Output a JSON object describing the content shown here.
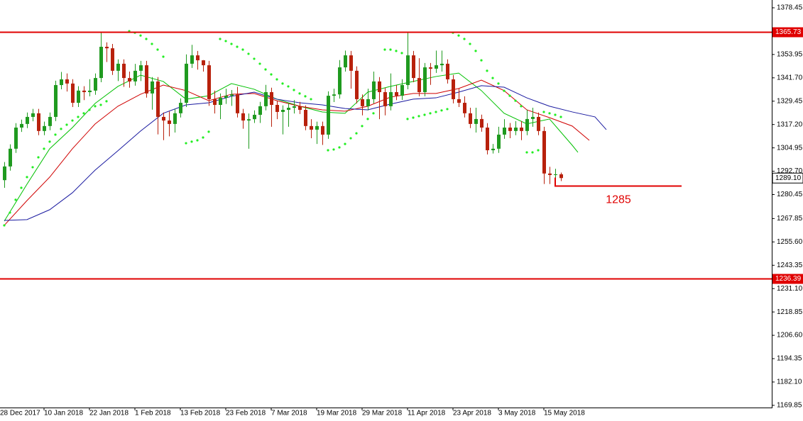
{
  "chart_data": {
    "type": "candlestick",
    "up_color": "#1f9a1f",
    "down_color": "#b8210c",
    "xlim": [
      -0.75,
      135
    ],
    "ylim": [
      1168.7,
      1382.54
    ],
    "xticks": [
      {
        "value": -1,
        "label": "28 Dec 2017"
      },
      {
        "value": 7,
        "label": "10 Jan 2018"
      },
      {
        "value": 15,
        "label": "22 Jan 2018"
      },
      {
        "value": 23,
        "label": "1 Feb 2018"
      },
      {
        "value": 31,
        "label": "13 Feb 2018"
      },
      {
        "value": 39,
        "label": "23 Feb 2018"
      },
      {
        "value": 47,
        "label": "7 Mar 2018"
      },
      {
        "value": 55,
        "label": "19 Mar 2018"
      },
      {
        "value": 63,
        "label": "29 Mar 2018"
      },
      {
        "value": 71,
        "label": "11 Apr 2018"
      },
      {
        "value": 79,
        "label": "23 Apr 2018"
      },
      {
        "value": 87,
        "label": "3 May 2018"
      },
      {
        "value": 95,
        "label": "15 May 2018"
      }
    ],
    "yticks": [
      1378.45,
      1353.95,
      {
        "value": 1341.7,
        "label": "1341.70"
      },
      1329.45,
      {
        "value": 1317.2,
        "label": "1317.20"
      },
      1304.95,
      {
        "value": 1292.7,
        "label": "1292.70"
      },
      1280.45,
      1267.85,
      {
        "value": 1255.6,
        "label": "1255.60"
      },
      1243.35,
      {
        "value": 1231.1,
        "label": "1231.10"
      },
      1218.85,
      {
        "value": 1206.6,
        "label": "1206.60"
      },
      1194.35,
      {
        "value": 1182.1,
        "label": "1182.10"
      },
      1169.85
    ],
    "x": [
      0,
      1,
      2,
      3,
      4,
      5,
      6,
      7,
      8,
      9,
      10,
      11,
      12,
      13,
      14,
      15,
      16,
      17,
      18,
      19,
      20,
      21,
      22,
      23,
      24,
      25,
      26,
      27,
      28,
      29,
      30,
      31,
      32,
      33,
      34,
      35,
      36,
      37,
      38,
      39,
      40,
      41,
      42,
      43,
      44,
      45,
      46,
      47,
      48,
      49,
      50,
      51,
      52,
      53,
      54,
      55,
      56,
      57,
      58,
      59,
      60,
      61,
      62,
      63,
      64,
      65,
      66,
      67,
      68,
      69,
      70,
      71,
      72,
      73,
      74,
      75,
      76,
      77,
      78,
      79,
      80,
      81,
      82,
      83,
      84,
      85,
      86,
      87,
      88,
      89,
      90,
      91,
      92,
      93,
      94,
      95,
      96,
      97,
      98
    ],
    "open": [
      1288.0,
      1295.2,
      1304.5,
      1315.6,
      1317.5,
      1321.2,
      1323.1,
      1313.8,
      1316.4,
      1321.2,
      1337.9,
      1340.9,
      1338.7,
      1328.6,
      1335.0,
      1334.2,
      1335.0,
      1341.6,
      1358.0,
      1357.2,
      1345.4,
      1349.1,
      1341.6,
      1339.8,
      1345.4,
      1348.3,
      1333.5,
      1339.8,
      1321.2,
      1319.3,
      1317.5,
      1323.1,
      1328.6,
      1349.1,
      1353.5,
      1350.9,
      1348.3,
      1330.5,
      1327.5,
      1331.2,
      1332.3,
      1333.0,
      1323.1,
      1319.3,
      1320.0,
      1322.3,
      1326.8,
      1334.2,
      1327.5,
      1323.8,
      1324.9,
      1326.0,
      1326.8,
      1324.9,
      1316.4,
      1314.5,
      1316.4,
      1311.9,
      1332.3,
      1333.0,
      1347.2,
      1353.5,
      1345.4,
      1330.5,
      1326.8,
      1330.5,
      1339.8,
      1334.2,
      1326.8,
      1334.2,
      1332.3,
      1337.9,
      1353.5,
      1341.6,
      1334.2,
      1347.2,
      1346.5,
      1348.3,
      1349.1,
      1340.9,
      1330.5,
      1328.6,
      1323.1,
      1317.5,
      1320.1,
      1315.6,
      1303.7,
      1304.5,
      1311.9,
      1315.6,
      1313.8,
      1315.6,
      1313.8,
      1320.1,
      1321.2,
      1313.8,
      1291.5,
      1290.7,
      1291.1
    ],
    "high": [
      1297.5,
      1306.8,
      1317.9,
      1319.8,
      1323.5,
      1325.4,
      1325.4,
      1318.7,
      1323.5,
      1340.2,
      1344.8,
      1344.0,
      1341.0,
      1337.3,
      1337.3,
      1341.0,
      1344.0,
      1365.5,
      1360.3,
      1359.5,
      1351.4,
      1351.4,
      1345.0,
      1349.0,
      1350.6,
      1350.6,
      1342.1,
      1342.1,
      1323.5,
      1324.0,
      1325.4,
      1330.9,
      1354.0,
      1359.0,
      1355.8,
      1351.0,
      1350.6,
      1335.0,
      1333.5,
      1336.0,
      1335.3,
      1337.0,
      1325.4,
      1323.0,
      1324.6,
      1329.1,
      1338.0,
      1336.5,
      1329.8,
      1327.2,
      1328.3,
      1330.0,
      1329.1,
      1327.2,
      1320.0,
      1318.7,
      1318.7,
      1334.6,
      1336.0,
      1351.0,
      1356.0,
      1355.8,
      1347.7,
      1333.0,
      1336.0,
      1345.0,
      1342.1,
      1336.5,
      1344.0,
      1338.0,
      1341.0,
      1365.5,
      1355.8,
      1352.0,
      1349.5,
      1349.5,
      1356.0,
      1356.0,
      1351.4,
      1343.2,
      1336.0,
      1332.0,
      1326.0,
      1326.0,
      1322.4,
      1317.9,
      1307.0,
      1316.0,
      1320.0,
      1318.0,
      1319.0,
      1319.0,
      1325.0,
      1326.0,
      1323.5,
      1316.0,
      1295.0,
      1294.0,
      1292.0
    ],
    "low": [
      1284.0,
      1293.0,
      1302.3,
      1313.3,
      1315.3,
      1318.9,
      1311.6,
      1311.6,
      1314.2,
      1319.0,
      1335.7,
      1334.5,
      1326.4,
      1326.4,
      1330.0,
      1332.0,
      1332.8,
      1339.4,
      1350.0,
      1343.2,
      1340.0,
      1337.0,
      1336.5,
      1337.6,
      1340.0,
      1331.3,
      1325.0,
      1312.0,
      1309.0,
      1311.0,
      1313.0,
      1320.9,
      1326.4,
      1346.9,
      1346.0,
      1345.0,
      1327.0,
      1323.0,
      1320.0,
      1328.0,
      1327.0,
      1320.9,
      1315.0,
      1304.5,
      1318.0,
      1318.0,
      1324.6,
      1316.0,
      1320.0,
      1312.0,
      1316.0,
      1323.0,
      1322.7,
      1314.2,
      1310.0,
      1307.0,
      1306.5,
      1309.7,
      1329.0,
      1330.8,
      1345.0,
      1336.0,
      1328.3,
      1322.0,
      1324.6,
      1328.3,
      1320.0,
      1322.0,
      1324.6,
      1330.0,
      1330.1,
      1335.7,
      1339.4,
      1332.0,
      1332.0,
      1338.0,
      1344.3,
      1345.0,
      1338.7,
      1328.3,
      1326.4,
      1320.9,
      1315.3,
      1313.0,
      1313.4,
      1301.5,
      1302.0,
      1302.3,
      1309.7,
      1310.0,
      1311.6,
      1309.0,
      1311.6,
      1316.0,
      1311.6,
      1286.0,
      1286.0,
      1286.5,
      1287.5
    ],
    "close": [
      1295.2,
      1304.5,
      1315.6,
      1317.5,
      1321.2,
      1323.1,
      1313.8,
      1316.4,
      1321.2,
      1337.9,
      1340.9,
      1338.7,
      1328.6,
      1335.0,
      1334.2,
      1335.0,
      1341.6,
      1358.0,
      1357.2,
      1345.4,
      1349.1,
      1341.6,
      1339.8,
      1345.4,
      1348.3,
      1333.5,
      1339.8,
      1321.2,
      1319.3,
      1317.5,
      1323.1,
      1328.6,
      1349.1,
      1353.5,
      1350.9,
      1348.3,
      1330.5,
      1327.5,
      1331.2,
      1332.3,
      1333.0,
      1323.1,
      1319.3,
      1320.0,
      1322.3,
      1326.8,
      1334.2,
      1327.5,
      1323.8,
      1324.9,
      1326.0,
      1326.8,
      1324.9,
      1316.4,
      1314.5,
      1316.4,
      1311.9,
      1332.3,
      1333.0,
      1347.2,
      1353.5,
      1345.4,
      1330.5,
      1326.8,
      1330.5,
      1339.8,
      1334.2,
      1326.8,
      1334.2,
      1332.3,
      1337.9,
      1353.5,
      1341.6,
      1334.2,
      1347.2,
      1346.5,
      1348.3,
      1349.1,
      1340.9,
      1330.5,
      1328.6,
      1323.1,
      1317.5,
      1320.1,
      1315.6,
      1303.7,
      1304.5,
      1311.9,
      1315.6,
      1313.8,
      1315.6,
      1313.8,
      1320.1,
      1321.2,
      1313.8,
      1291.5,
      1290.7,
      1291.1,
      1289.1
    ],
    "overlays": [
      {
        "type": "line",
        "color": "#00c000",
        "x": [
          0,
          4,
          8,
          12,
          16,
          20,
          24,
          28,
          32,
          36,
          40,
          44,
          48,
          52,
          56,
          60,
          64,
          68,
          72,
          76,
          80,
          84,
          88,
          92,
          96,
          100,
          101
        ],
        "values": [
          1266.5,
          1285.9,
          1304.5,
          1315.6,
          1328.3,
          1337.2,
          1343.1,
          1339.8,
          1330.5,
          1332.3,
          1338.7,
          1335.7,
          1330.5,
          1326.8,
          1323.8,
          1323.1,
          1334.2,
          1337.2,
          1339.8,
          1342.4,
          1344.2,
          1335.0,
          1323.1,
          1317.5,
          1320.1,
          1306.3,
          1302.6
        ]
      },
      {
        "type": "line",
        "color": "#d00000",
        "x": [
          0,
          4,
          8,
          12,
          16,
          20,
          24,
          28,
          32,
          36,
          40,
          44,
          48,
          52,
          56,
          60,
          64,
          68,
          72,
          76,
          80,
          84,
          88,
          92,
          96,
          100,
          103
        ],
        "values": [
          1264.3,
          1277.3,
          1289.6,
          1304.5,
          1317.5,
          1326.8,
          1333.1,
          1337.9,
          1335.0,
          1329.7,
          1333.1,
          1333.5,
          1329.7,
          1326.8,
          1324.9,
          1324.2,
          1326.8,
          1331.6,
          1333.5,
          1333.5,
          1336.1,
          1340.5,
          1335.0,
          1324.9,
          1320.8,
          1316.4,
          1308.9
        ]
      },
      {
        "type": "line",
        "color": "#1a1aa0",
        "x": [
          0,
          4,
          8,
          12,
          16,
          20,
          24,
          28,
          32,
          36,
          40,
          44,
          48,
          52,
          56,
          60,
          64,
          68,
          72,
          76,
          80,
          84,
          88,
          92,
          96,
          100,
          104,
          106
        ],
        "values": [
          1266.9,
          1267.3,
          1272.5,
          1281.4,
          1293.3,
          1303.4,
          1313.8,
          1323.1,
          1327.5,
          1328.6,
          1332.0,
          1334.2,
          1330.5,
          1328.6,
          1327.5,
          1325.6,
          1324.9,
          1327.9,
          1330.5,
          1331.2,
          1334.2,
          1337.6,
          1336.8,
          1331.2,
          1326.8,
          1323.8,
          1321.2,
          1314.5
        ]
      },
      {
        "type": "scatter",
        "color": "#22ee22",
        "x": [
          0,
          1,
          2,
          3,
          4,
          5,
          6,
          7,
          8,
          9,
          10,
          11,
          12,
          13,
          14,
          15,
          16,
          17,
          18,
          22,
          23,
          24,
          25,
          26,
          27,
          28,
          32,
          33,
          34,
          35,
          36,
          38,
          39,
          40,
          41,
          42,
          43,
          44,
          45,
          46,
          47,
          48,
          49,
          50,
          51,
          52,
          53,
          54,
          57,
          58,
          59,
          60,
          61,
          62,
          63,
          64,
          65,
          67,
          68,
          69,
          70,
          71,
          72,
          73,
          74,
          75,
          76,
          77,
          78,
          79,
          80,
          81,
          82,
          83,
          84,
          85,
          86,
          87,
          88,
          89,
          90,
          91,
          92,
          93,
          94,
          95,
          96,
          97,
          98
        ],
        "values": [
          1264.3,
          1271.0,
          1277.7,
          1284.0,
          1289.6,
          1294.8,
          1300.0,
          1304.5,
          1308.2,
          1311.9,
          1314.9,
          1317.1,
          1319.3,
          1321.2,
          1323.1,
          1324.9,
          1326.8,
          1327.5,
          1329.4,
          1366.2,
          1365.4,
          1363.9,
          1362.1,
          1359.5,
          1356.5,
          1352.8,
          1307.4,
          1308.2,
          1308.9,
          1310.4,
          1313.4,
          1362.1,
          1361.0,
          1359.5,
          1358.0,
          1356.5,
          1354.3,
          1351.7,
          1349.1,
          1346.1,
          1343.5,
          1340.9,
          1338.7,
          1337.2,
          1335.3,
          1333.5,
          1332.0,
          1330.5,
          1303.7,
          1304.1,
          1305.2,
          1307.0,
          1310.0,
          1312.6,
          1316.4,
          1320.1,
          1323.1,
          1356.5,
          1356.5,
          1355.8,
          1354.7,
          1320.1,
          1320.8,
          1321.6,
          1322.3,
          1323.1,
          1323.8,
          1324.6,
          1325.3,
          1365.4,
          1363.9,
          1362.1,
          1359.5,
          1355.8,
          1350.9,
          1345.4,
          1341.6,
          1338.7,
          1334.9,
          1332.3,
          1329.7,
          1326.8,
          1302.6,
          1302.6,
          1303.7,
          1323.8,
          1323.1,
          1322.3,
          1321.2
        ]
      }
    ],
    "levels": [
      {
        "value": 1365.73,
        "color": "#e00000"
      },
      {
        "value": 1236.39,
        "color": "#e00000"
      }
    ],
    "current_price": {
      "value": 1289.1,
      "label": "1289.10"
    },
    "target": {
      "value": 1285,
      "x": [
        97,
        119.25
      ],
      "color": "#e00000"
    }
  }
}
